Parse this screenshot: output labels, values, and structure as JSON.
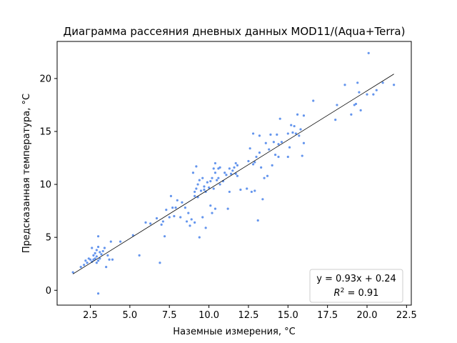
{
  "chart_data": {
    "type": "scatter",
    "title": "Диаграмма рассеяния дневных данных MOD11/(Aqua+Terra)",
    "xlabel": "Наземные измерения, °C",
    "ylabel": "Предсказанная температура, °C",
    "xlim": [
      0.4,
      22.8
    ],
    "ylim": [
      -1.4,
      23.5
    ],
    "xticks": [
      2.5,
      5.0,
      7.5,
      10.0,
      12.5,
      15.0,
      17.5,
      20.0,
      22.5
    ],
    "xtick_labels": [
      "2.5",
      "5.0",
      "7.5",
      "10.0",
      "12.5",
      "15.0",
      "17.5",
      "20.0",
      "22.5"
    ],
    "yticks": [
      0,
      5,
      10,
      15,
      20
    ],
    "ytick_labels": [
      "0",
      "5",
      "10",
      "15",
      "20"
    ],
    "grid": false,
    "point_color": "#6495ED",
    "fit_line": {
      "slope": 0.93,
      "intercept": 0.24,
      "x_range": [
        1.4,
        21.7
      ],
      "color": "#000000"
    },
    "legend": {
      "placement": "bottom-right",
      "line1": "y = 0.93x + 0.24",
      "line2_prefix": "R",
      "line2_sup": "2",
      "line2_suffix": " = 0.91"
    },
    "points": [
      [
        1.4,
        1.7
      ],
      [
        1.9,
        2.2
      ],
      [
        2.1,
        2.4
      ],
      [
        2.2,
        2.8
      ],
      [
        2.3,
        2.6
      ],
      [
        2.4,
        3.0
      ],
      [
        2.5,
        2.9
      ],
      [
        2.6,
        4.0
      ],
      [
        2.6,
        2.7
      ],
      [
        2.7,
        3.3
      ],
      [
        2.7,
        2.9
      ],
      [
        2.8,
        3.5
      ],
      [
        2.8,
        3.0
      ],
      [
        2.9,
        2.6
      ],
      [
        2.9,
        3.8
      ],
      [
        2.9,
        3.2
      ],
      [
        3.0,
        4.1
      ],
      [
        3.0,
        2.8
      ],
      [
        3.0,
        5.1
      ],
      [
        3.0,
        -0.3
      ],
      [
        3.1,
        3.6
      ],
      [
        3.1,
        3.0
      ],
      [
        3.2,
        3.4
      ],
      [
        3.3,
        3.7
      ],
      [
        3.4,
        4.0
      ],
      [
        3.5,
        2.2
      ],
      [
        3.6,
        3.3
      ],
      [
        3.7,
        2.9
      ],
      [
        3.8,
        4.6
      ],
      [
        3.9,
        2.9
      ],
      [
        4.4,
        4.6
      ],
      [
        5.2,
        5.2
      ],
      [
        5.6,
        3.3
      ],
      [
        6.0,
        6.4
      ],
      [
        6.3,
        6.3
      ],
      [
        6.7,
        6.8
      ],
      [
        6.9,
        2.6
      ],
      [
        7.0,
        6.2
      ],
      [
        7.1,
        6.5
      ],
      [
        7.2,
        5.1
      ],
      [
        7.3,
        7.6
      ],
      [
        7.5,
        6.9
      ],
      [
        7.6,
        8.9
      ],
      [
        7.7,
        7.8
      ],
      [
        7.8,
        7.0
      ],
      [
        7.9,
        7.8
      ],
      [
        8.0,
        8.5
      ],
      [
        8.2,
        6.9
      ],
      [
        8.3,
        8.3
      ],
      [
        8.5,
        7.8
      ],
      [
        8.6,
        6.5
      ],
      [
        8.7,
        7.3
      ],
      [
        8.8,
        6.1
      ],
      [
        8.9,
        6.7
      ],
      [
        9.0,
        11.1
      ],
      [
        9.1,
        9.3
      ],
      [
        9.1,
        8.9
      ],
      [
        9.1,
        6.4
      ],
      [
        9.2,
        11.7
      ],
      [
        9.2,
        9.6
      ],
      [
        9.3,
        10.0
      ],
      [
        9.3,
        8.8
      ],
      [
        9.4,
        10.4
      ],
      [
        9.4,
        5.0
      ],
      [
        9.5,
        9.4
      ],
      [
        9.6,
        10.6
      ],
      [
        9.6,
        6.9
      ],
      [
        9.7,
        9.5
      ],
      [
        9.7,
        9.8
      ],
      [
        9.8,
        9.3
      ],
      [
        9.8,
        5.9
      ],
      [
        9.9,
        10.2
      ],
      [
        10.0,
        9.7
      ],
      [
        10.1,
        10.3
      ],
      [
        10.1,
        8.0
      ],
      [
        10.2,
        10.6
      ],
      [
        10.2,
        7.3
      ],
      [
        10.3,
        11.5
      ],
      [
        10.3,
        9.6
      ],
      [
        10.4,
        12.0
      ],
      [
        10.4,
        11.1
      ],
      [
        10.4,
        7.7
      ],
      [
        10.5,
        10.4
      ],
      [
        10.6,
        11.5
      ],
      [
        10.6,
        10.6
      ],
      [
        10.7,
        10.0
      ],
      [
        10.7,
        11.6
      ],
      [
        10.9,
        10.3
      ],
      [
        11.0,
        11.1
      ],
      [
        11.1,
        10.9
      ],
      [
        11.2,
        7.7
      ],
      [
        11.3,
        11.5
      ],
      [
        11.3,
        9.3
      ],
      [
        11.4,
        11.0
      ],
      [
        11.5,
        11.3
      ],
      [
        11.6,
        11.6
      ],
      [
        11.7,
        12.0
      ],
      [
        11.7,
        11.0
      ],
      [
        11.8,
        11.8
      ],
      [
        11.8,
        10.8
      ],
      [
        12.0,
        9.5
      ],
      [
        12.4,
        9.6
      ],
      [
        12.5,
        12.2
      ],
      [
        12.6,
        13.4
      ],
      [
        12.7,
        9.3
      ],
      [
        12.8,
        11.9
      ],
      [
        12.8,
        14.8
      ],
      [
        12.9,
        12.1
      ],
      [
        12.9,
        9.4
      ],
      [
        13.0,
        12.6
      ],
      [
        13.1,
        6.6
      ],
      [
        13.2,
        13.0
      ],
      [
        13.2,
        14.6
      ],
      [
        13.3,
        11.6
      ],
      [
        13.4,
        8.6
      ],
      [
        13.5,
        10.6
      ],
      [
        13.6,
        13.9
      ],
      [
        13.7,
        10.8
      ],
      [
        13.8,
        13.3
      ],
      [
        13.9,
        14.7
      ],
      [
        14.0,
        11.8
      ],
      [
        14.1,
        14.0
      ],
      [
        14.2,
        12.8
      ],
      [
        14.3,
        14.7
      ],
      [
        14.4,
        12.6
      ],
      [
        14.4,
        13.8
      ],
      [
        14.5,
        16.2
      ],
      [
        14.6,
        14.0
      ],
      [
        15.0,
        14.8
      ],
      [
        15.0,
        12.6
      ],
      [
        15.1,
        13.5
      ],
      [
        15.2,
        15.6
      ],
      [
        15.3,
        14.9
      ],
      [
        15.4,
        15.5
      ],
      [
        15.5,
        14.8
      ],
      [
        15.6,
        16.6
      ],
      [
        15.7,
        14.6
      ],
      [
        15.8,
        15.2
      ],
      [
        15.9,
        12.7
      ],
      [
        16.0,
        16.5
      ],
      [
        16.0,
        13.9
      ],
      [
        16.6,
        17.9
      ],
      [
        18.0,
        16.1
      ],
      [
        18.1,
        17.5
      ],
      [
        18.6,
        19.4
      ],
      [
        19.0,
        16.6
      ],
      [
        19.2,
        17.5
      ],
      [
        19.3,
        17.6
      ],
      [
        19.4,
        19.6
      ],
      [
        19.5,
        18.7
      ],
      [
        19.6,
        17.0
      ],
      [
        20.0,
        18.5
      ],
      [
        20.1,
        22.4
      ],
      [
        20.4,
        18.5
      ],
      [
        20.6,
        18.9
      ],
      [
        21.0,
        19.6
      ],
      [
        21.7,
        19.4
      ]
    ]
  }
}
